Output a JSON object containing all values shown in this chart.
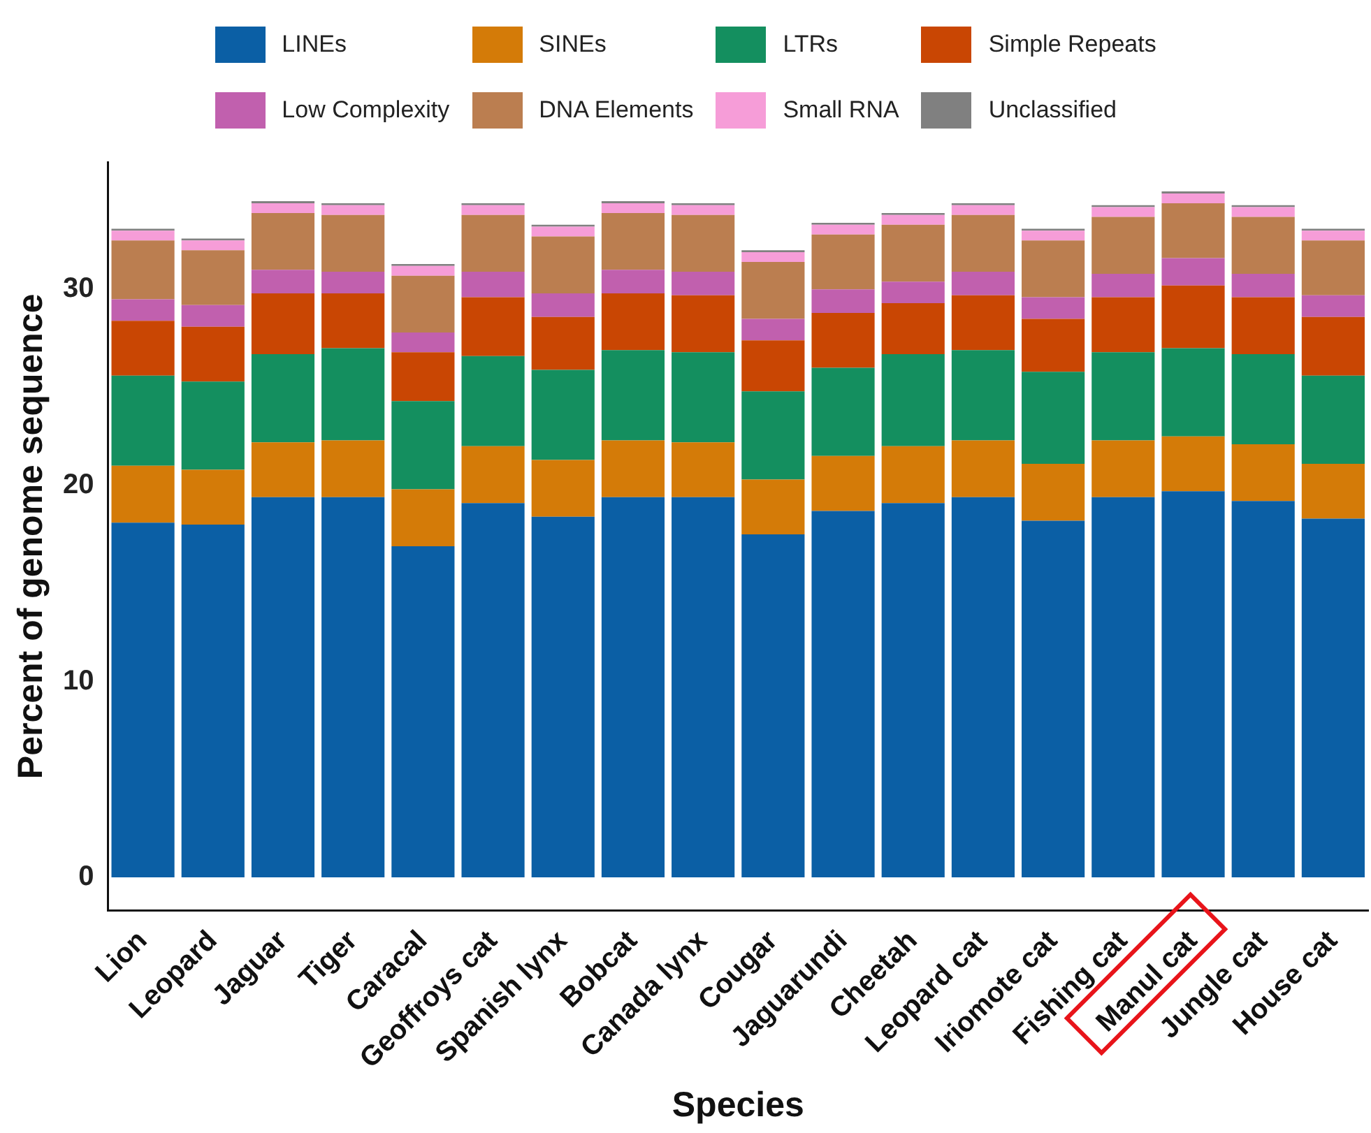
{
  "chart_data": {
    "type": "bar",
    "stacked": true,
    "xlabel": "Species",
    "ylabel": "Percent of genome sequence",
    "categories": [
      "Lion",
      "Leopard",
      "Jaguar",
      "Tiger",
      "Caracal",
      "Geoffroys cat",
      "Spanish lynx",
      "Bobcat",
      "Canada lynx",
      "Cougar",
      "Jaguarundi",
      "Cheetah",
      "Leopard cat",
      "Iriomote cat",
      "Fishing cat",
      "Manul cat",
      "Jungle cat",
      "House cat"
    ],
    "series": [
      {
        "name": "LINEs",
        "color": "#0b5fa5",
        "values": [
          18.1,
          18.0,
          19.4,
          19.4,
          16.9,
          19.1,
          18.4,
          19.4,
          19.4,
          17.5,
          18.7,
          19.1,
          19.4,
          18.2,
          19.4,
          19.7,
          19.2,
          18.3
        ]
      },
      {
        "name": "SINEs",
        "color": "#d47b08",
        "values": [
          2.9,
          2.8,
          2.8,
          2.9,
          2.9,
          2.9,
          2.9,
          2.9,
          2.8,
          2.8,
          2.8,
          2.9,
          2.9,
          2.9,
          2.9,
          2.8,
          2.9,
          2.8
        ]
      },
      {
        "name": "LTRs",
        "color": "#148f5f",
        "values": [
          4.6,
          4.5,
          4.5,
          4.7,
          4.5,
          4.6,
          4.6,
          4.6,
          4.6,
          4.5,
          4.5,
          4.7,
          4.6,
          4.7,
          4.5,
          4.5,
          4.6,
          4.5
        ]
      },
      {
        "name": "Simple Repeats",
        "color": "#c94603",
        "values": [
          2.8,
          2.8,
          3.1,
          2.8,
          2.5,
          3.0,
          2.7,
          2.9,
          2.9,
          2.6,
          2.8,
          2.6,
          2.8,
          2.7,
          2.8,
          3.2,
          2.9,
          3.0
        ]
      },
      {
        "name": "Low Complexity",
        "color": "#c160ae",
        "values": [
          1.1,
          1.1,
          1.2,
          1.1,
          1.0,
          1.3,
          1.2,
          1.2,
          1.2,
          1.1,
          1.2,
          1.1,
          1.2,
          1.1,
          1.2,
          1.4,
          1.2,
          1.1
        ]
      },
      {
        "name": "DNA Elements",
        "color": "#bb7e50",
        "values": [
          3.0,
          2.8,
          2.9,
          2.9,
          2.9,
          2.9,
          2.9,
          2.9,
          2.9,
          2.9,
          2.8,
          2.9,
          2.9,
          2.9,
          2.9,
          2.8,
          2.9,
          2.8
        ]
      },
      {
        "name": "Small RNA",
        "color": "#f69dd8",
        "values": [
          0.5,
          0.5,
          0.5,
          0.5,
          0.5,
          0.5,
          0.5,
          0.5,
          0.5,
          0.5,
          0.5,
          0.5,
          0.5,
          0.5,
          0.5,
          0.5,
          0.5,
          0.5
        ]
      },
      {
        "name": "Unclassified",
        "color": "#808080",
        "values": [
          0.1,
          0.1,
          0.1,
          0.1,
          0.1,
          0.1,
          0.1,
          0.1,
          0.1,
          0.1,
          0.1,
          0.1,
          0.1,
          0.1,
          0.1,
          0.1,
          0.1,
          0.1
        ]
      }
    ],
    "ylim": [
      -1.7,
      36.5
    ],
    "yticks": [
      0,
      10,
      20,
      30
    ],
    "grid": false,
    "legend": "top"
  }
}
